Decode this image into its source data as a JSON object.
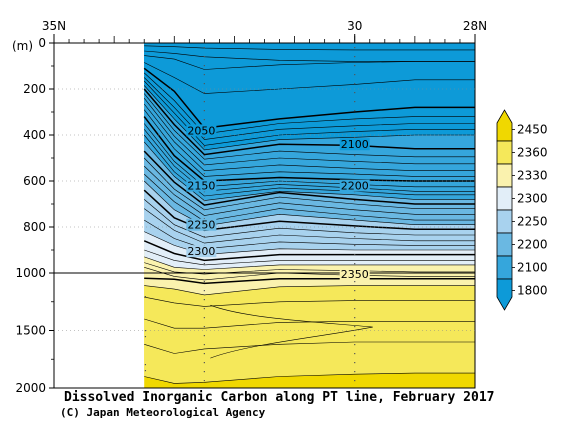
{
  "chart_data": {
    "type": "contour",
    "title": "Dissolved Inorganic Carbon along PT line, February 2017",
    "credit": "(C) Japan Meteorological Agency",
    "y_unit_label": "(m)",
    "x_ticks": [
      {
        "lat": 35,
        "label": "35N"
      },
      {
        "lat": 30,
        "label": "30"
      },
      {
        "lat": 28,
        "label": "28N"
      }
    ],
    "y_ticks_upper": [
      {
        "depth": 0,
        "label": "0"
      },
      {
        "depth": 200,
        "label": "200"
      },
      {
        "depth": 400,
        "label": "400"
      },
      {
        "depth": 600,
        "label": "600"
      },
      {
        "depth": 800,
        "label": "800"
      },
      {
        "depth": 1000,
        "label": "1000"
      }
    ],
    "y_ticks_lower": [
      {
        "depth": 1500,
        "label": "1500"
      },
      {
        "depth": 2000,
        "label": "2000"
      }
    ],
    "x_range": [
      35,
      28
    ],
    "y_range_upper": [
      0,
      1000
    ],
    "y_range_lower": [
      1000,
      2000
    ],
    "station_lats": [
      32.5,
      30.0
    ],
    "data_start_lat": 33.5,
    "contour_interval": 10,
    "labelled_contours": [
      {
        "value": 2050,
        "label": "2050",
        "lat": 32.55,
        "depth": 380
      },
      {
        "value": 2100,
        "label": "2100",
        "lat": 30.0,
        "depth": 440
      },
      {
        "value": 2150,
        "label": "2150",
        "lat": 32.55,
        "depth": 620
      },
      {
        "value": 2200,
        "label": "2200",
        "lat": 30.0,
        "depth": 620
      },
      {
        "value": 2250,
        "label": "2250",
        "lat": 32.55,
        "depth": 790
      },
      {
        "value": 2300,
        "label": "2300",
        "lat": 32.55,
        "depth": 905
      },
      {
        "value": 2350,
        "label": "2350",
        "lat": 30.0,
        "depth": 1010
      }
    ],
    "colorbar": {
      "labels": [
        "2450",
        "2360",
        "2330",
        "2300",
        "2250",
        "2200",
        "2100",
        "1800"
      ],
      "colors": [
        "#f0d800",
        "#f5e85a",
        "#faf2ae",
        "#e2eef8",
        "#a8d2ee",
        "#6ab8e2",
        "#35a6dc",
        "#0d9ad8"
      ]
    },
    "depth_contours": [
      {
        "value": 2010,
        "depths": [
          12,
          16,
          22,
          28,
          30,
          30
        ]
      },
      {
        "value": 2020,
        "depths": [
          35,
          45,
          60,
          75,
          80,
          80
        ]
      },
      {
        "value": 2030,
        "depths": [
          55,
          70,
          115,
          95,
          85,
          80
        ]
      },
      {
        "value": 2040,
        "depths": [
          85,
          150,
          220,
          200,
          180,
          160
        ]
      },
      {
        "value": 2050,
        "depths": [
          110,
          210,
          370,
          330,
          300,
          280
        ]
      },
      {
        "value": 2060,
        "depths": [
          130,
          250,
          395,
          350,
          330,
          320
        ]
      },
      {
        "value": 2070,
        "depths": [
          150,
          280,
          420,
          375,
          360,
          350
        ]
      },
      {
        "value": 2080,
        "depths": [
          165,
          305,
          445,
          400,
          385,
          375
        ]
      },
      {
        "value": 2090,
        "depths": [
          185,
          330,
          465,
          420,
          410,
          400
        ]
      },
      {
        "value": 2100,
        "depths": [
          200,
          355,
          485,
          440,
          445,
          460
        ]
      },
      {
        "value": 2110,
        "depths": [
          220,
          380,
          505,
          470,
          485,
          495
        ]
      },
      {
        "value": 2120,
        "depths": [
          240,
          405,
          530,
          500,
          515,
          525
        ]
      },
      {
        "value": 2130,
        "depths": [
          265,
          430,
          555,
          530,
          545,
          555
        ]
      },
      {
        "value": 2140,
        "depths": [
          290,
          460,
          580,
          560,
          570,
          580
        ]
      },
      {
        "value": 2150,
        "depths": [
          320,
          490,
          600,
          585,
          595,
          600
        ]
      },
      {
        "value": 2160,
        "depths": [
          350,
          515,
          625,
          600,
          615,
          625
        ]
      },
      {
        "value": 2170,
        "depths": [
          375,
          535,
          645,
          615,
          630,
          645
        ]
      },
      {
        "value": 2180,
        "depths": [
          400,
          560,
          665,
          630,
          645,
          660
        ]
      },
      {
        "value": 2190,
        "depths": [
          430,
          580,
          685,
          645,
          660,
          680
        ]
      },
      {
        "value": 2200,
        "depths": [
          470,
          605,
          705,
          650,
          680,
          700
        ]
      },
      {
        "value": 2210,
        "depths": [
          500,
          635,
          725,
          670,
          700,
          720
        ]
      },
      {
        "value": 2220,
        "depths": [
          535,
          660,
          750,
          695,
          725,
          745
        ]
      },
      {
        "value": 2230,
        "depths": [
          570,
          690,
          775,
          720,
          750,
          770
        ]
      },
      {
        "value": 2240,
        "depths": [
          600,
          725,
          795,
          745,
          770,
          790
        ]
      },
      {
        "value": 2250,
        "depths": [
          640,
          760,
          815,
          775,
          795,
          810
        ]
      },
      {
        "value": 2260,
        "depths": [
          680,
          790,
          845,
          805,
          825,
          835
        ]
      },
      {
        "value": 2270,
        "depths": [
          720,
          815,
          870,
          835,
          850,
          860
        ]
      },
      {
        "value": 2280,
        "depths": [
          770,
          850,
          895,
          865,
          875,
          880
        ]
      },
      {
        "value": 2290,
        "depths": [
          820,
          880,
          920,
          895,
          900,
          900
        ]
      },
      {
        "value": 2300,
        "depths": [
          860,
          915,
          945,
          920,
          920,
          920
        ]
      },
      {
        "value": 2310,
        "depths": [
          900,
          945,
          965,
          945,
          945,
          945
        ]
      },
      {
        "value": 2320,
        "depths": [
          930,
          975,
          985,
          965,
          965,
          965
        ]
      },
      {
        "value": 2330,
        "depths": [
          955,
          995,
          1010,
          985,
          990,
          995
        ]
      },
      {
        "value": 2340,
        "depths": [
          975,
          1030,
          1060,
          1000,
          1020,
          1030
        ]
      }
    ],
    "deep_contours": [
      {
        "value": 2350,
        "depths": [
          1045,
          1055,
          1090,
          1050,
          1050,
          1050
        ]
      },
      {
        "value": 2355,
        "depths": [
          1110,
          1140,
          1190,
          1120,
          1110,
          1110
        ]
      },
      {
        "value": 2360,
        "depths": [
          1210,
          1260,
          1290,
          1250,
          1240,
          1240
        ]
      },
      {
        "value": 2365,
        "depths": [
          1400,
          1480,
          1480,
          1430,
          1420,
          1420
        ]
      },
      {
        "value": 2370,
        "depths": [
          1620,
          1700,
          1660,
          1620,
          1600,
          1600
        ]
      },
      {
        "value": 2375,
        "depths": [
          1900,
          1960,
          1950,
          1900,
          1880,
          1870
        ]
      }
    ],
    "lat_nodes": [
      33.5,
      33.0,
      32.5,
      31.25,
      30.0,
      29.0,
      28.0
    ],
    "bold_values": [
      2050,
      2100,
      2150,
      2200,
      2250,
      2300,
      2350
    ]
  }
}
